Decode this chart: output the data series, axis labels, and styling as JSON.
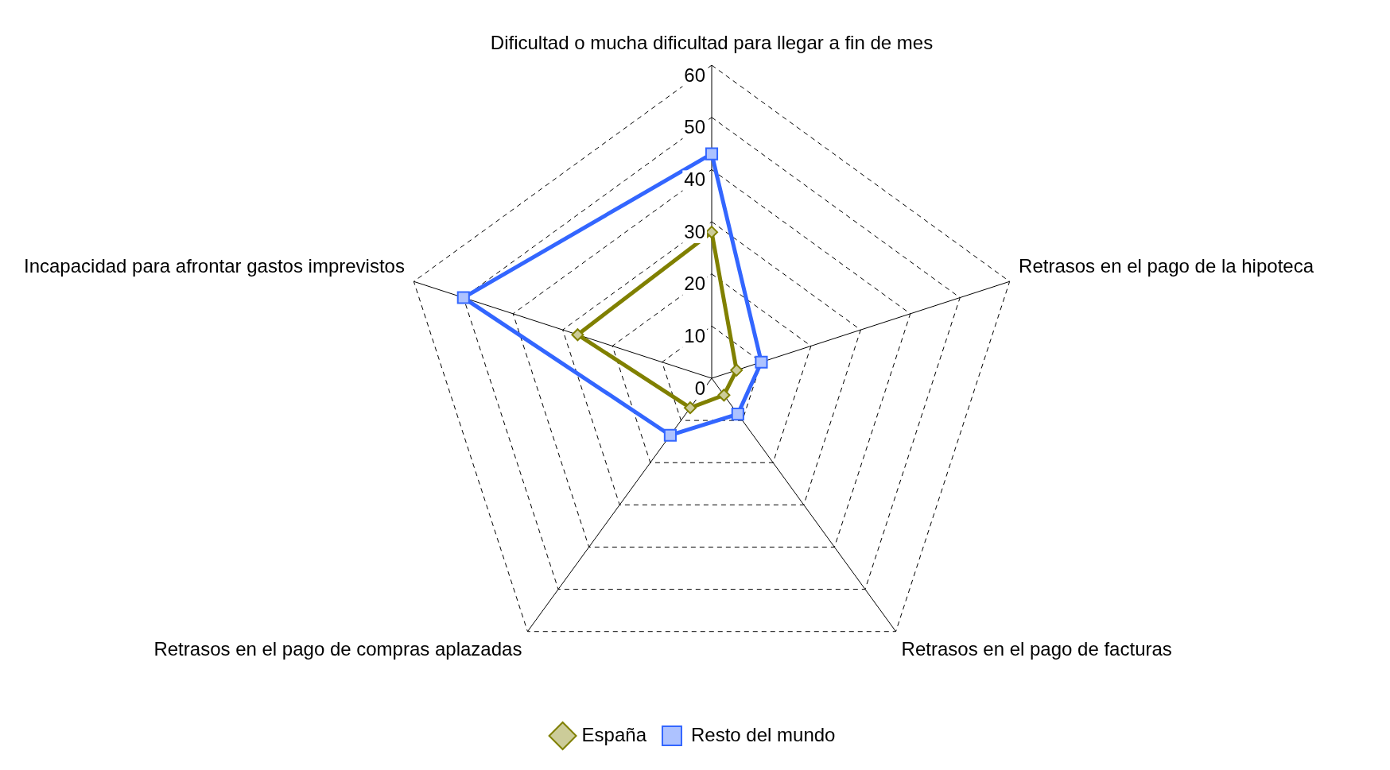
{
  "chart_data": {
    "type": "radar",
    "categories": [
      "Dificultad o mucha dificultad para llegar a fin de mes",
      "Retrasos en el pago de la hipoteca",
      "Retrasos en el pago de facturas",
      "Retrasos en el pago de compras aplazadas",
      "Incapacidad para afrontar gastos imprevistos"
    ],
    "series": [
      {
        "name": "España",
        "color": "#808000",
        "marker": "diamond",
        "values": [
          28,
          5,
          4,
          7,
          27
        ]
      },
      {
        "name": "Resto del mundo",
        "color": "#3366ff",
        "marker": "square",
        "values": [
          43,
          10,
          8.5,
          13.5,
          50
        ]
      }
    ],
    "ylim": [
      0,
      60
    ],
    "yticks": [
      0,
      10,
      20,
      30,
      40,
      50,
      60
    ],
    "grid": true,
    "line_style": "solid",
    "legend": "bottom"
  }
}
